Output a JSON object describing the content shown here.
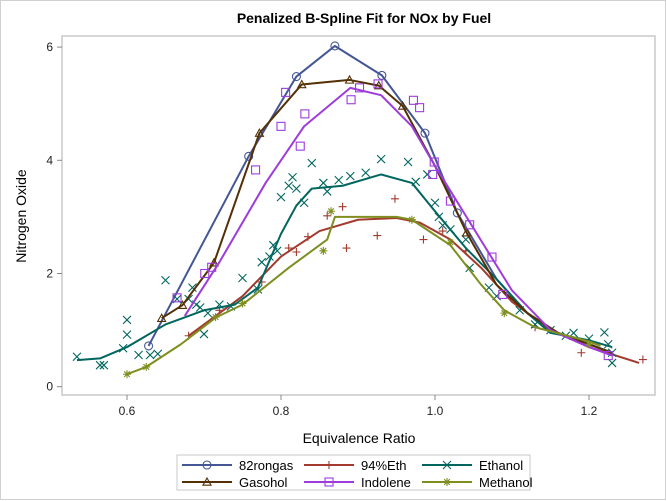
{
  "chart_data": {
    "type": "line",
    "title": "Penalized B-Spline Fit for NOx by Fuel",
    "xlabel": "Equivalence Ratio",
    "ylabel": "Nitrogen Oxide",
    "xlim": [
      0.525,
      1.29
    ],
    "ylim": [
      -0.15,
      6.3
    ],
    "xticks": [
      "0.6",
      "0.8",
      "1.0",
      "1.2"
    ],
    "xtick_values": [
      0.6,
      0.8,
      1.0,
      1.2
    ],
    "yticks": [
      "0",
      "2",
      "4",
      "6"
    ],
    "ytick_values": [
      0,
      2,
      4,
      6
    ],
    "grid": false,
    "legend_position": "bottom",
    "series": [
      {
        "name": "82rongas",
        "color": "#445694",
        "marker": "circle",
        "points": [
          [
            0.628,
            0.72
          ],
          [
            0.758,
            4.07
          ],
          [
            0.82,
            5.48
          ],
          [
            0.87,
            6.02
          ],
          [
            0.931,
            5.5
          ],
          [
            0.987,
            4.48
          ],
          [
            1.029,
            3.07
          ]
        ],
        "fit": [
          [
            0.628,
            0.72
          ],
          [
            0.758,
            4.07
          ],
          [
            0.82,
            5.48
          ],
          [
            0.87,
            6.02
          ],
          [
            0.931,
            5.5
          ],
          [
            0.987,
            4.48
          ],
          [
            1.029,
            3.07
          ],
          [
            1.08,
            1.9
          ],
          [
            1.12,
            1.3
          ],
          [
            1.16,
            0.95
          ],
          [
            1.2,
            0.75
          ],
          [
            1.23,
            0.6
          ]
        ]
      },
      {
        "name": "94%Eth",
        "color": "#A23A2E",
        "marker": "plus",
        "points": [
          [
            0.68,
            0.9
          ],
          [
            0.72,
            1.35
          ],
          [
            0.775,
            1.85
          ],
          [
            0.81,
            2.45
          ],
          [
            0.82,
            2.38
          ],
          [
            0.835,
            2.65
          ],
          [
            0.86,
            3.02
          ],
          [
            0.88,
            3.18
          ],
          [
            0.885,
            2.45
          ],
          [
            0.925,
            2.67
          ],
          [
            0.948,
            3.32
          ],
          [
            0.985,
            2.6
          ],
          [
            1.01,
            2.75
          ],
          [
            1.04,
            2.4
          ],
          [
            1.13,
            1.05
          ],
          [
            1.19,
            0.6
          ],
          [
            1.27,
            0.48
          ]
        ],
        "fit": [
          [
            0.68,
            0.9
          ],
          [
            0.75,
            1.6
          ],
          [
            0.8,
            2.3
          ],
          [
            0.85,
            2.75
          ],
          [
            0.9,
            2.95
          ],
          [
            0.95,
            2.98
          ],
          [
            0.98,
            2.9
          ],
          [
            1.02,
            2.6
          ],
          [
            1.06,
            2.1
          ],
          [
            1.1,
            1.5
          ],
          [
            1.15,
            1.0
          ],
          [
            1.2,
            0.7
          ],
          [
            1.265,
            0.42
          ]
        ]
      },
      {
        "name": "Ethanol",
        "color": "#01665E",
        "marker": "x",
        "points": [
          [
            0.535,
            0.53
          ],
          [
            0.565,
            0.38
          ],
          [
            0.57,
            0.38
          ],
          [
            0.595,
            0.68
          ],
          [
            0.6,
            1.18
          ],
          [
            0.6,
            0.92
          ],
          [
            0.615,
            0.56
          ],
          [
            0.63,
            0.56
          ],
          [
            0.64,
            0.58
          ],
          [
            0.65,
            1.88
          ],
          [
            0.665,
            1.55
          ],
          [
            0.68,
            1.55
          ],
          [
            0.685,
            1.75
          ],
          [
            0.69,
            1.45
          ],
          [
            0.695,
            1.4
          ],
          [
            0.7,
            0.93
          ],
          [
            0.705,
            1.3
          ],
          [
            0.72,
            1.45
          ],
          [
            0.735,
            1.42
          ],
          [
            0.75,
            1.92
          ],
          [
            0.77,
            1.72
          ],
          [
            0.775,
            2.2
          ],
          [
            0.785,
            2.3
          ],
          [
            0.79,
            2.5
          ],
          [
            0.795,
            2.4
          ],
          [
            0.8,
            3.35
          ],
          [
            0.81,
            3.55
          ],
          [
            0.815,
            3.7
          ],
          [
            0.82,
            3.5
          ],
          [
            0.83,
            3.25
          ],
          [
            0.84,
            3.95
          ],
          [
            0.855,
            3.6
          ],
          [
            0.86,
            3.45
          ],
          [
            0.875,
            3.65
          ],
          [
            0.89,
            3.72
          ],
          [
            0.91,
            3.78
          ],
          [
            0.93,
            4.02
          ],
          [
            0.965,
            3.97
          ],
          [
            0.975,
            3.62
          ],
          [
            0.99,
            3.75
          ],
          [
            1.0,
            3.25
          ],
          [
            1.005,
            3.0
          ],
          [
            1.01,
            2.85
          ],
          [
            1.02,
            2.78
          ],
          [
            1.04,
            2.6
          ],
          [
            1.045,
            2.1
          ],
          [
            1.07,
            1.75
          ],
          [
            1.08,
            1.6
          ],
          [
            1.11,
            1.35
          ],
          [
            1.13,
            1.1
          ],
          [
            1.15,
            1.0
          ],
          [
            1.17,
            0.9
          ],
          [
            1.18,
            0.95
          ],
          [
            1.2,
            0.85
          ],
          [
            1.22,
            0.96
          ],
          [
            1.225,
            0.75
          ],
          [
            1.23,
            0.6
          ],
          [
            1.23,
            0.42
          ]
        ],
        "fit": [
          [
            0.535,
            0.47
          ],
          [
            0.565,
            0.5
          ],
          [
            0.6,
            0.7
          ],
          [
            0.65,
            1.1
          ],
          [
            0.7,
            1.35
          ],
          [
            0.74,
            1.45
          ],
          [
            0.77,
            1.75
          ],
          [
            0.8,
            2.7
          ],
          [
            0.82,
            3.2
          ],
          [
            0.84,
            3.5
          ],
          [
            0.88,
            3.55
          ],
          [
            0.93,
            3.75
          ],
          [
            0.97,
            3.6
          ],
          [
            1.0,
            3.1
          ],
          [
            1.04,
            2.45
          ],
          [
            1.08,
            1.9
          ],
          [
            1.12,
            1.3
          ],
          [
            1.15,
            0.95
          ],
          [
            1.2,
            0.82
          ],
          [
            1.23,
            0.7
          ]
        ]
      },
      {
        "name": "Gasohol",
        "color": "#543005",
        "marker": "triangle",
        "points": [
          [
            0.645,
            1.21
          ],
          [
            0.672,
            1.44
          ],
          [
            0.713,
            2.19
          ],
          [
            0.772,
            4.48
          ],
          [
            0.827,
            5.34
          ],
          [
            0.889,
            5.42
          ],
          [
            0.927,
            5.32
          ],
          [
            0.958,
            4.96
          ],
          [
            1.041,
            2.72
          ]
        ],
        "fit": [
          [
            0.645,
            1.21
          ],
          [
            0.672,
            1.44
          ],
          [
            0.713,
            2.19
          ],
          [
            0.772,
            4.48
          ],
          [
            0.827,
            5.34
          ],
          [
            0.889,
            5.42
          ],
          [
            0.927,
            5.32
          ],
          [
            0.958,
            4.96
          ],
          [
            1.0,
            3.9
          ],
          [
            1.041,
            2.72
          ],
          [
            1.08,
            1.8
          ],
          [
            1.12,
            1.3
          ],
          [
            1.16,
            0.95
          ],
          [
            1.2,
            0.75
          ],
          [
            1.23,
            0.6
          ]
        ]
      },
      {
        "name": "Indolene",
        "color": "#9D3CDB",
        "marker": "square",
        "points": [
          [
            0.665,
            1.57
          ],
          [
            0.701,
            2.0
          ],
          [
            0.71,
            2.11
          ],
          [
            0.767,
            3.83
          ],
          [
            0.8,
            4.6
          ],
          [
            0.825,
            4.25
          ],
          [
            0.831,
            4.82
          ],
          [
            0.806,
            5.2
          ],
          [
            0.891,
            5.07
          ],
          [
            0.902,
            5.28
          ],
          [
            0.926,
            5.35
          ],
          [
            0.972,
            5.06
          ],
          [
            0.98,
            4.93
          ],
          [
            0.999,
            3.97
          ],
          [
            0.997,
            3.75
          ],
          [
            1.02,
            3.28
          ],
          [
            1.045,
            2.86
          ],
          [
            1.074,
            2.29
          ],
          [
            1.088,
            1.63
          ],
          [
            1.225,
            0.55
          ]
        ],
        "fit": [
          [
            0.675,
            1.25
          ],
          [
            0.72,
            2.2
          ],
          [
            0.78,
            3.6
          ],
          [
            0.83,
            4.6
          ],
          [
            0.89,
            5.28
          ],
          [
            0.93,
            5.15
          ],
          [
            0.97,
            4.6
          ],
          [
            1.0,
            3.9
          ],
          [
            1.05,
            2.8
          ],
          [
            1.1,
            1.7
          ],
          [
            1.15,
            1.0
          ],
          [
            1.2,
            0.7
          ],
          [
            1.23,
            0.55
          ]
        ]
      },
      {
        "name": "Methanol",
        "color": "#7F8E1F",
        "marker": "star",
        "points": [
          [
            0.6,
            0.22
          ],
          [
            0.625,
            0.35
          ],
          [
            0.715,
            1.23
          ],
          [
            0.75,
            1.47
          ],
          [
            0.855,
            2.4
          ],
          [
            0.865,
            3.1
          ],
          [
            0.97,
            2.95
          ],
          [
            1.02,
            2.55
          ],
          [
            1.09,
            1.3
          ],
          [
            1.2,
            0.75
          ]
        ],
        "fit": [
          [
            0.6,
            0.22
          ],
          [
            0.625,
            0.35
          ],
          [
            0.67,
            0.75
          ],
          [
            0.715,
            1.22
          ],
          [
            0.75,
            1.45
          ],
          [
            0.81,
            2.1
          ],
          [
            0.86,
            2.6
          ],
          [
            0.87,
            3.0
          ],
          [
            0.95,
            3.0
          ],
          [
            0.97,
            2.95
          ],
          [
            1.02,
            2.5
          ],
          [
            1.06,
            1.8
          ],
          [
            1.09,
            1.35
          ],
          [
            1.13,
            1.05
          ],
          [
            1.2,
            0.8
          ],
          [
            1.215,
            0.72
          ]
        ]
      }
    ]
  }
}
